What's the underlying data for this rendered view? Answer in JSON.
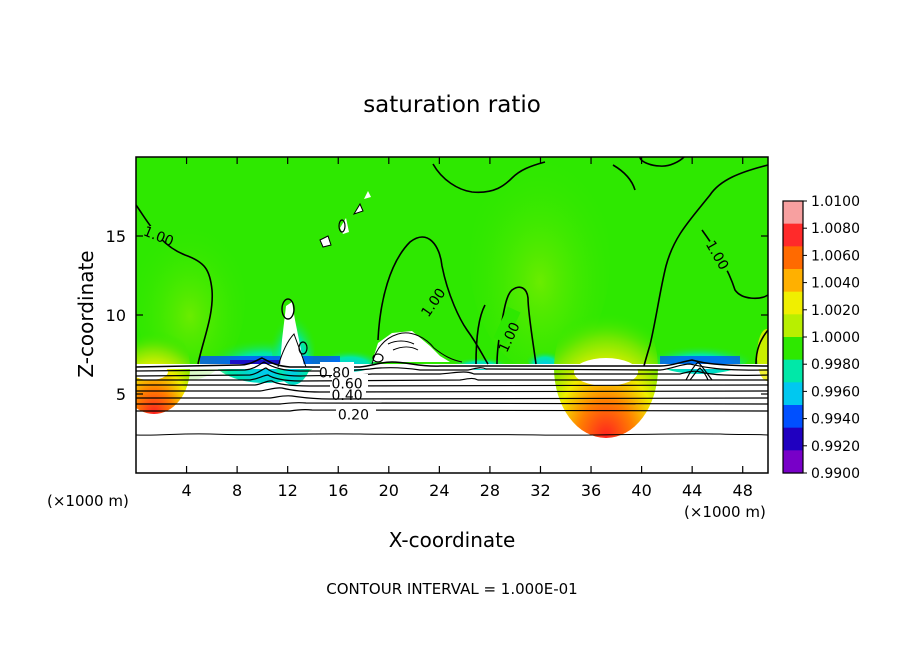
{
  "chart_data": {
    "type": "heatmap",
    "title": "saturation ratio",
    "xlabel": "X-coordinate",
    "ylabel": "Z-coordinate",
    "x_unit_left": "(×1000 m)",
    "x_unit_right": "(×1000 m)",
    "xlim": [
      0,
      50
    ],
    "ylim": [
      0,
      20
    ],
    "x_ticks": [
      4,
      8,
      12,
      16,
      20,
      24,
      28,
      32,
      36,
      40,
      44,
      48
    ],
    "y_ticks": [
      5,
      10,
      15
    ],
    "colorbar": {
      "labels": [
        "1.0100",
        "1.0080",
        "1.0060",
        "1.0040",
        "1.0020",
        "1.0000",
        "0.9980",
        "0.9960",
        "0.9940",
        "0.9920",
        "0.9900"
      ],
      "range": [
        0.99,
        1.01
      ],
      "colors": [
        "#f7a0a0",
        "#ff2a2a",
        "#ff6a00",
        "#ffb000",
        "#f0ef00",
        "#b8ef00",
        "#2ee800",
        "#00e8a8",
        "#00c8f0",
        "#0050ff",
        "#2000c0",
        "#7800c8"
      ]
    },
    "contour_labels": [
      {
        "text": "1.00",
        "x": 1.8,
        "z": 15.0
      },
      {
        "text": "1.00",
        "x": 23.5,
        "z": 10.8
      },
      {
        "text": "1.00",
        "x": 29.5,
        "z": 8.6
      },
      {
        "text": "1.00",
        "x": 46.0,
        "z": 13.8
      },
      {
        "text": "0.80",
        "x": 15.7,
        "z": 6.35
      },
      {
        "text": "0.60",
        "x": 16.7,
        "z": 5.65
      },
      {
        "text": "0.40",
        "x": 16.7,
        "z": 4.95
      },
      {
        "text": "0.20",
        "x": 17.2,
        "z": 3.7
      }
    ],
    "contour_interval_text": "CONTOUR INTERVAL = 1.000E-01"
  }
}
